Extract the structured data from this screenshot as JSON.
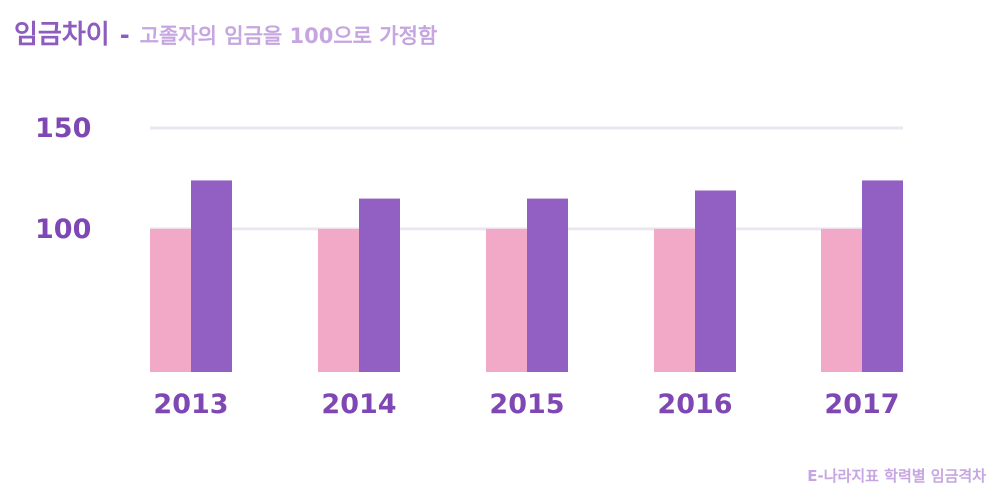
{
  "header": {
    "title": "임금차이",
    "separator": "-",
    "subtitle": "고졸자의 임금을 100으로 가정함"
  },
  "footer": {
    "source": "E-나라지표 학력별 임금격차"
  },
  "colors": {
    "series_high_school": "#f2a9c8",
    "series_university": "#925fc2",
    "gridline": "#ece6f3",
    "tick_label": "#7e47b3"
  },
  "chart_data": {
    "type": "bar",
    "title": "",
    "xlabel": "",
    "ylabel": "",
    "categories": [
      "2013",
      "2014",
      "2015",
      "2016",
      "2017"
    ],
    "series": [
      {
        "values": [
          100,
          100,
          100,
          100,
          100
        ]
      },
      {
        "values": [
          124,
          115,
          115,
          119,
          124
        ]
      }
    ],
    "y_ticks": [
      {
        "value": 100,
        "label": "100"
      },
      {
        "value": 150,
        "label": "150"
      }
    ],
    "ylim": [
      29,
      150
    ],
    "grid": true,
    "legend": "none"
  }
}
